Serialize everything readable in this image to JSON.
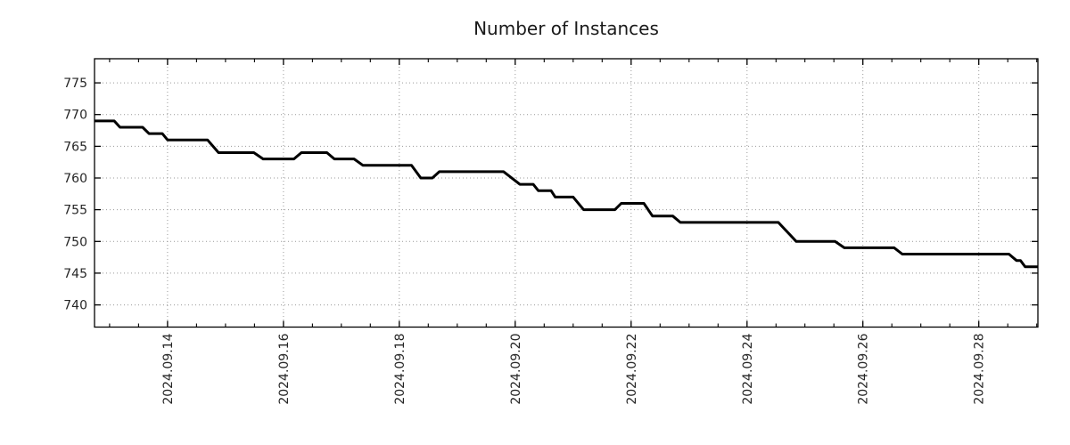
{
  "chart_data": {
    "type": "line",
    "title": "Number of Instances",
    "x_unit": "day of September 2024 (decimal day-of-month)",
    "xlim": [
      12.74,
      29.02
    ],
    "ylim": [
      736.5,
      778.8
    ],
    "grid": "dotted",
    "legend": "none",
    "y_ticks": [
      775,
      770,
      765,
      760,
      755,
      750,
      745,
      740
    ],
    "x_ticks": [
      {
        "label": "2024.09.14",
        "value": 14
      },
      {
        "label": "2024.09.16",
        "value": 16
      },
      {
        "label": "2024.09.18",
        "value": 18
      },
      {
        "label": "2024.09.20",
        "value": 20
      },
      {
        "label": "2024.09.22",
        "value": 22
      },
      {
        "label": "2024.09.24",
        "value": 24
      },
      {
        "label": "2024.09.26",
        "value": 26
      },
      {
        "label": "2024.09.28",
        "value": 28
      }
    ],
    "x_minor_start": 13.0,
    "x_minor_step": 0.5,
    "colors": {
      "line": "#000000",
      "grid": "#999999",
      "axis": "#000000",
      "tick_text": "#262626",
      "title_text": "#1a1a1a",
      "background": "#ffffff"
    },
    "series": [
      {
        "name": "Number of Instances",
        "color": "#000000",
        "points": [
          [
            12.74,
            769
          ],
          [
            13.08,
            769
          ],
          [
            13.18,
            768
          ],
          [
            13.57,
            768
          ],
          [
            13.68,
            767
          ],
          [
            13.91,
            767
          ],
          [
            14.0,
            766
          ],
          [
            14.69,
            766
          ],
          [
            14.88,
            764
          ],
          [
            15.49,
            764
          ],
          [
            15.65,
            763
          ],
          [
            16.18,
            763
          ],
          [
            16.31,
            764
          ],
          [
            16.75,
            764
          ],
          [
            16.88,
            763
          ],
          [
            17.22,
            763
          ],
          [
            17.37,
            762
          ],
          [
            18.21,
            762
          ],
          [
            18.37,
            760
          ],
          [
            18.57,
            760
          ],
          [
            18.69,
            761
          ],
          [
            19.8,
            761
          ],
          [
            20.08,
            759
          ],
          [
            20.31,
            759
          ],
          [
            20.4,
            758
          ],
          [
            20.62,
            758
          ],
          [
            20.69,
            757
          ],
          [
            21.0,
            757
          ],
          [
            21.18,
            755
          ],
          [
            21.72,
            755
          ],
          [
            21.83,
            756
          ],
          [
            22.22,
            756
          ],
          [
            22.37,
            754
          ],
          [
            22.72,
            754
          ],
          [
            22.85,
            753
          ],
          [
            24.54,
            753
          ],
          [
            24.85,
            750
          ],
          [
            25.52,
            750
          ],
          [
            25.68,
            749
          ],
          [
            26.54,
            749
          ],
          [
            26.68,
            748
          ],
          [
            28.52,
            748
          ],
          [
            28.65,
            747
          ],
          [
            28.72,
            747
          ],
          [
            28.8,
            746
          ],
          [
            29.02,
            746
          ]
        ]
      }
    ]
  }
}
